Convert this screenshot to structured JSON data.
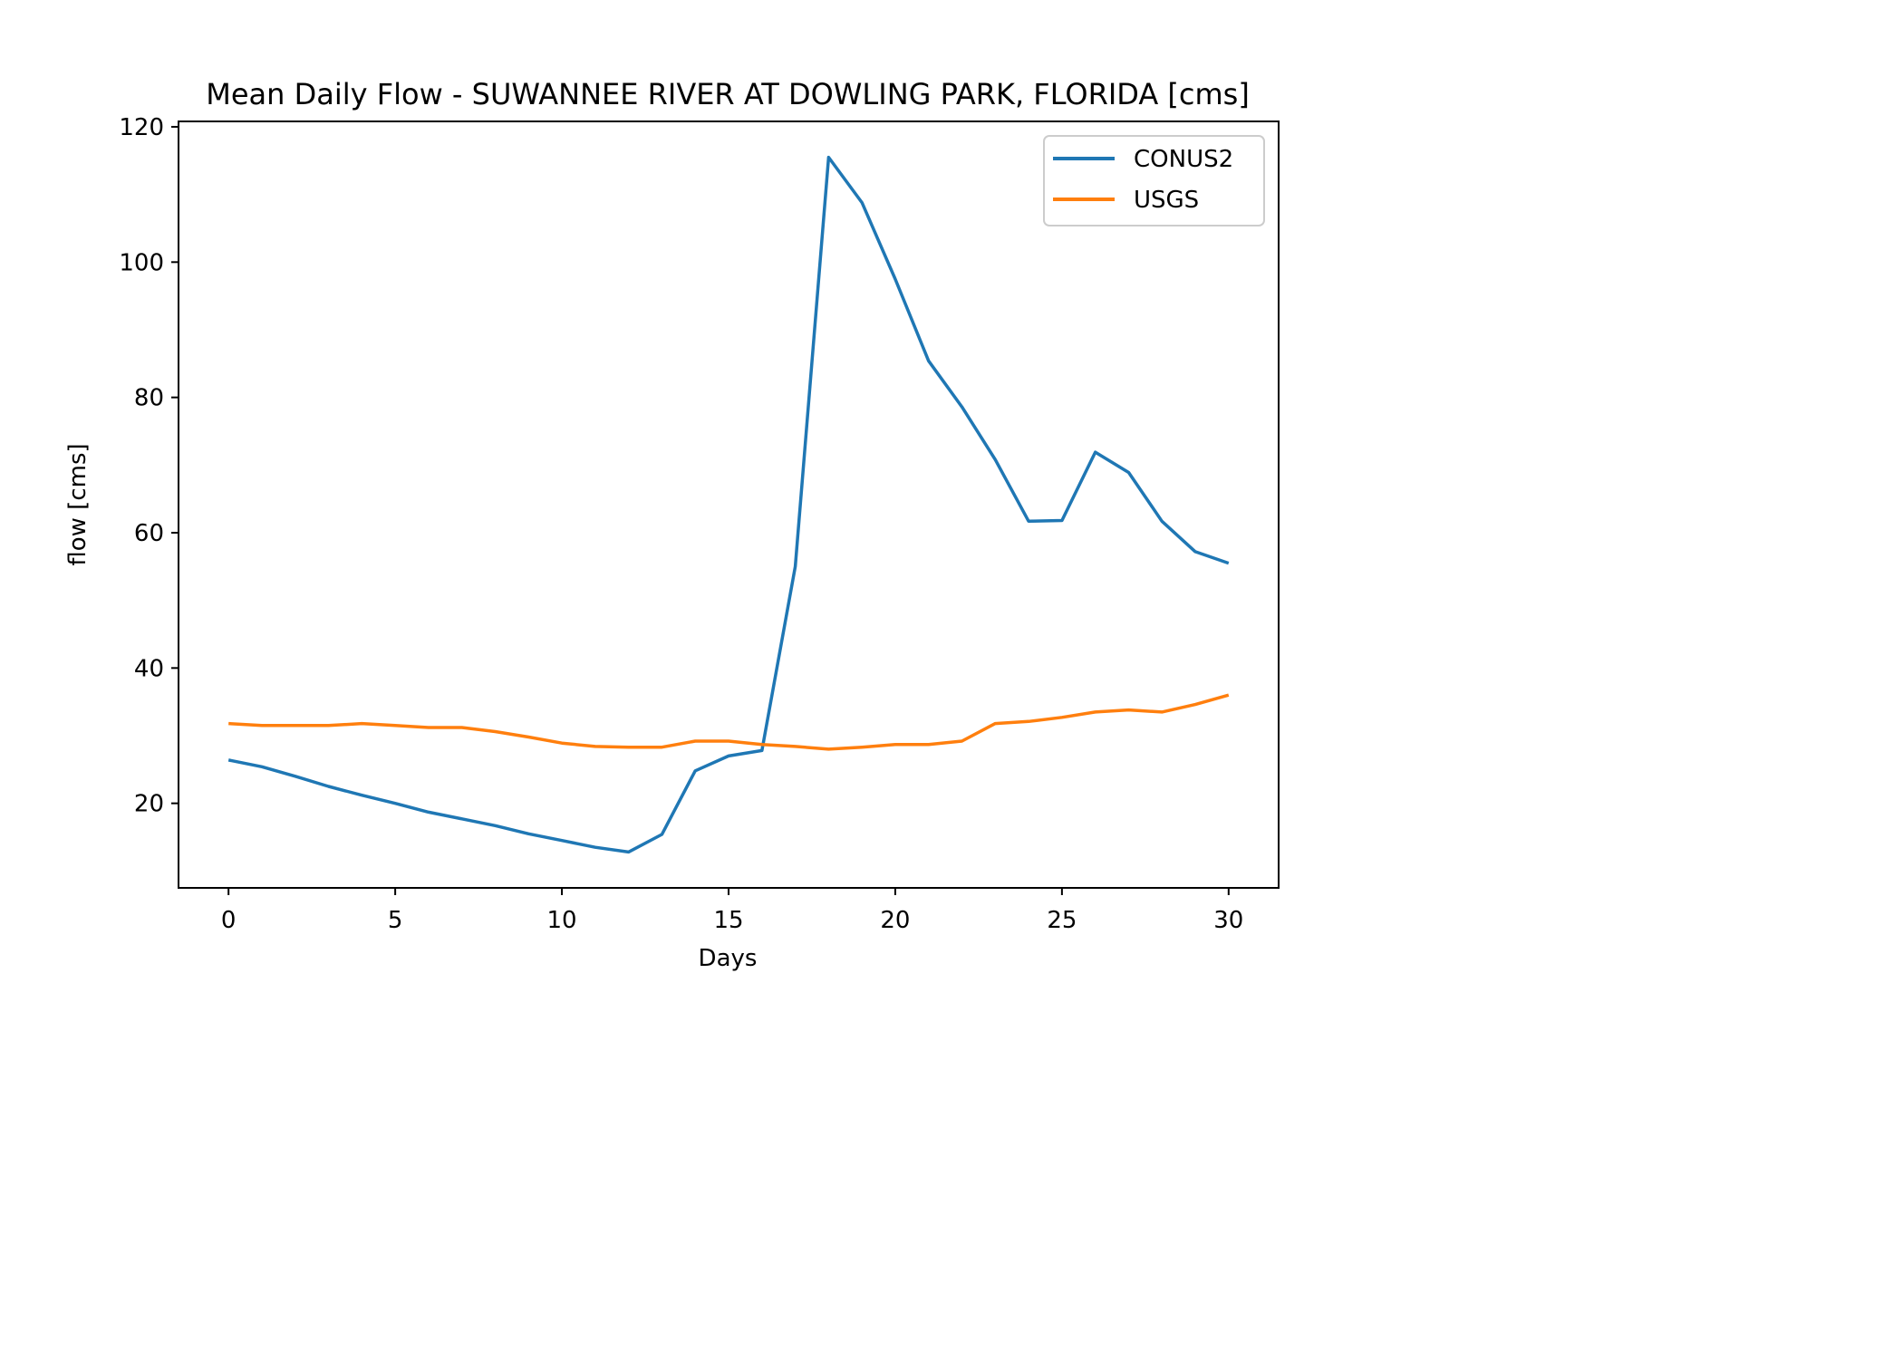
{
  "chart_data": {
    "type": "line",
    "title": "Mean Daily Flow - SUWANNEE RIVER AT DOWLING PARK, FLORIDA [cms]",
    "xlabel": "Days",
    "ylabel": "flow [cms]",
    "xlim": [
      -1.5,
      31.5
    ],
    "ylim": [
      7.5,
      120.8
    ],
    "xticks": [
      0,
      5,
      10,
      15,
      20,
      25,
      30
    ],
    "yticks": [
      20,
      40,
      60,
      80,
      100,
      120
    ],
    "grid": false,
    "legend_position": "top-right",
    "x": [
      0,
      1,
      2,
      3,
      4,
      5,
      6,
      7,
      8,
      9,
      10,
      11,
      12,
      13,
      14,
      15,
      16,
      17,
      18,
      19,
      20,
      21,
      22,
      23,
      24,
      25,
      26,
      27,
      28,
      29,
      30
    ],
    "series": [
      {
        "name": "CONUS2",
        "color": "#1f77b4",
        "values": [
          26.4,
          25.4,
          24.0,
          22.5,
          21.2,
          20.0,
          18.7,
          17.7,
          16.7,
          15.5,
          14.5,
          13.5,
          12.8,
          15.4,
          24.8,
          27.0,
          27.8,
          55.0,
          115.5,
          108.8,
          97.5,
          85.4,
          78.6,
          70.8,
          61.7,
          61.8,
          71.9,
          68.9,
          61.7,
          57.2,
          55.5
        ]
      },
      {
        "name": "USGS",
        "color": "#ff7f0e",
        "values": [
          31.8,
          31.5,
          31.5,
          31.5,
          31.8,
          31.5,
          31.2,
          31.2,
          30.6,
          29.8,
          28.9,
          28.4,
          28.3,
          28.3,
          29.2,
          29.2,
          28.7,
          28.4,
          28.0,
          28.3,
          28.7,
          28.7,
          29.2,
          31.8,
          32.1,
          32.7,
          33.5,
          33.8,
          33.5,
          34.6,
          36.0
        ]
      }
    ]
  }
}
